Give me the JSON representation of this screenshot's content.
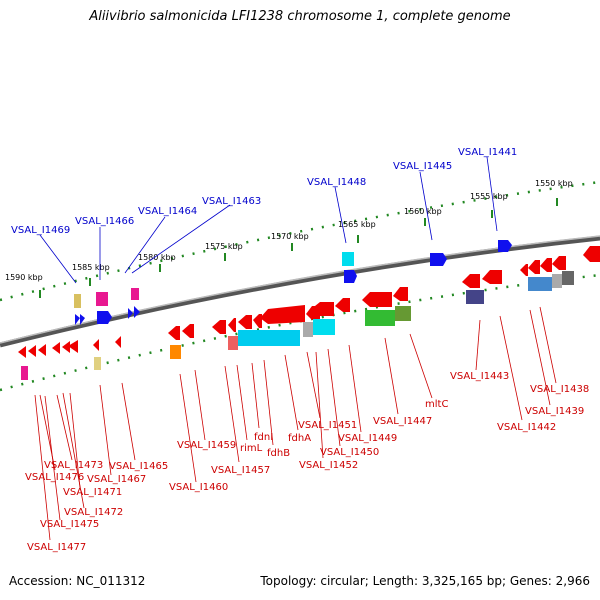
{
  "title": "Aliivibrio salmonicida LFI1238 chromosome 1, complete genome",
  "footer": {
    "accession": "Accession: NC_011312",
    "summary": "Topology: circular; Length: 3,325,165 bp; Genes: 2,966"
  },
  "colors": {
    "plus_label": "#0000cc",
    "minus_label": "#cc0000",
    "backbone": "#888888",
    "ticks": "#228822"
  },
  "ticks": [
    "1590 kbp",
    "1585 kbp",
    "1580 kbp",
    "1575 kbp",
    "1570 kbp",
    "1565 kbp",
    "1560 kbp",
    "1555 kbp",
    "1550 kbp"
  ],
  "plus_labels": [
    "VSAL_I1469",
    "VSAL_I1466",
    "VSAL_I1464",
    "VSAL_I1463",
    "VSAL_I1448",
    "VSAL_I1445",
    "VSAL_I1441"
  ],
  "minus_labels": [
    "VSAL_I1473",
    "VSAL_I1476",
    "VSAL_I1471",
    "VSAL_I1472",
    "VSAL_I1475",
    "VSAL_I1477",
    "VSAL_I1467",
    "VSAL_I1465",
    "VSAL_I1460",
    "VSAL_I1459",
    "VSAL_I1457",
    "rimL",
    "fdnI",
    "fdhB",
    "fdhA",
    "VSAL_I1451",
    "VSAL_I1452",
    "VSAL_I1450",
    "VSAL_I1449",
    "VSAL_I1447",
    "mltC",
    "VSAL_I1443",
    "VSAL_I1442",
    "VSAL_I1439",
    "VSAL_I1438"
  ]
}
